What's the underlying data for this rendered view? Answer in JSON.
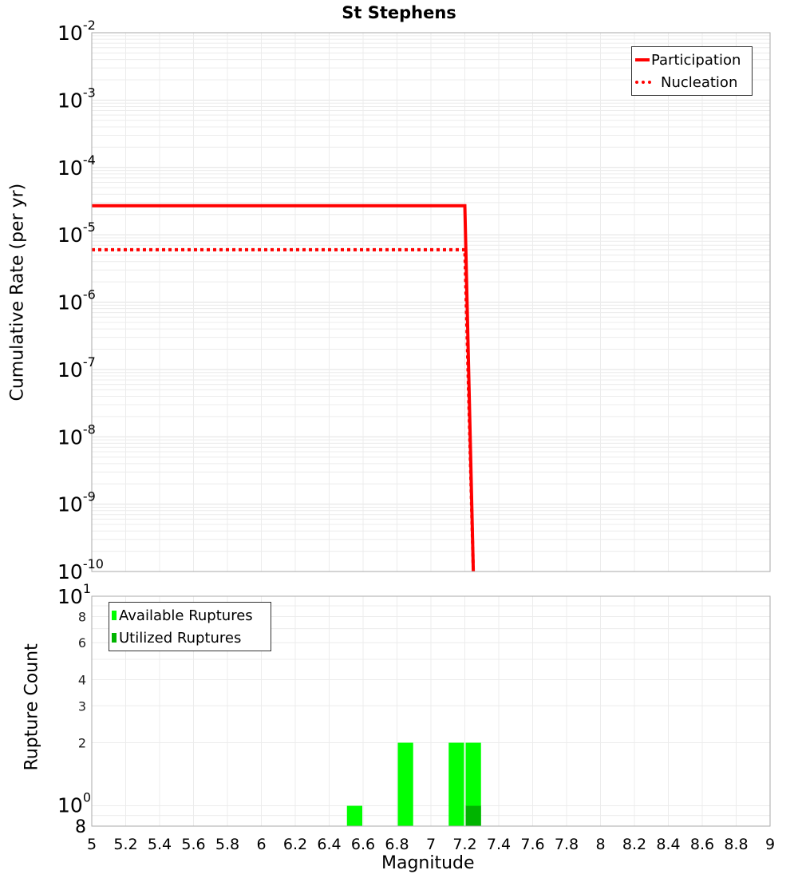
{
  "title": "St Stephens",
  "chart_data": [
    {
      "type": "line",
      "title": "St Stephens",
      "xlabel": "Magnitude",
      "ylabel": "Cumulative Rate (per yr)",
      "yscale": "log",
      "xlim": [
        5,
        9
      ],
      "ylim": [
        1e-10,
        0.01
      ],
      "yticks": [
        "10^-2",
        "10^-3",
        "10^-4",
        "10^-5",
        "10^-6",
        "10^-7",
        "10^-8",
        "10^-9",
        "10^-10"
      ],
      "grid": true,
      "legend_position": "top-right",
      "series": [
        {
          "name": "Participation",
          "style": "solid",
          "color": "#ff0000",
          "x": [
            5.0,
            7.2,
            7.25
          ],
          "y": [
            2.7e-05,
            2.7e-05,
            1e-10
          ]
        },
        {
          "name": "Nucleation",
          "style": "dotted",
          "color": "#ff0000",
          "x": [
            5.0,
            7.2,
            7.25
          ],
          "y": [
            6e-06,
            6e-06,
            1e-10
          ]
        }
      ]
    },
    {
      "type": "bar",
      "xlabel": "Magnitude",
      "ylabel": "Rupture Count",
      "yscale": "log",
      "xlim": [
        5,
        9
      ],
      "ylim": [
        0.8,
        10
      ],
      "yticks": [
        "8",
        "10^0",
        "2",
        "3",
        "4",
        "6",
        "8",
        "10^1"
      ],
      "xticks": [
        "5",
        "5.2",
        "5.4",
        "5.6",
        "5.8",
        "6",
        "6.2",
        "6.4",
        "6.6",
        "6.8",
        "7",
        "7.2",
        "7.4",
        "7.6",
        "7.8",
        "8",
        "8.2",
        "8.4",
        "8.6",
        "8.8",
        "9"
      ],
      "grid": true,
      "legend_position": "top-left",
      "series": [
        {
          "name": "Available Ruptures",
          "color": "#00ff00",
          "bins": [
            [
              6.5,
              6.6,
              1
            ],
            [
              6.8,
              6.9,
              2
            ],
            [
              7.1,
              7.2,
              2
            ],
            [
              7.2,
              7.3,
              2
            ]
          ]
        },
        {
          "name": "Utilized Ruptures",
          "color": "#00b400",
          "bins": [
            [
              7.2,
              7.3,
              1
            ]
          ]
        }
      ]
    }
  ],
  "top_legend": {
    "items": [
      "Participation",
      "Nucleation"
    ]
  },
  "bottom_legend": {
    "items": [
      "Available Ruptures",
      "Utilized Ruptures"
    ]
  },
  "axes": {
    "top_ylabel": "Cumulative Rate (per yr)",
    "bottom_ylabel": "Rupture Count",
    "xlabel": "Magnitude"
  }
}
